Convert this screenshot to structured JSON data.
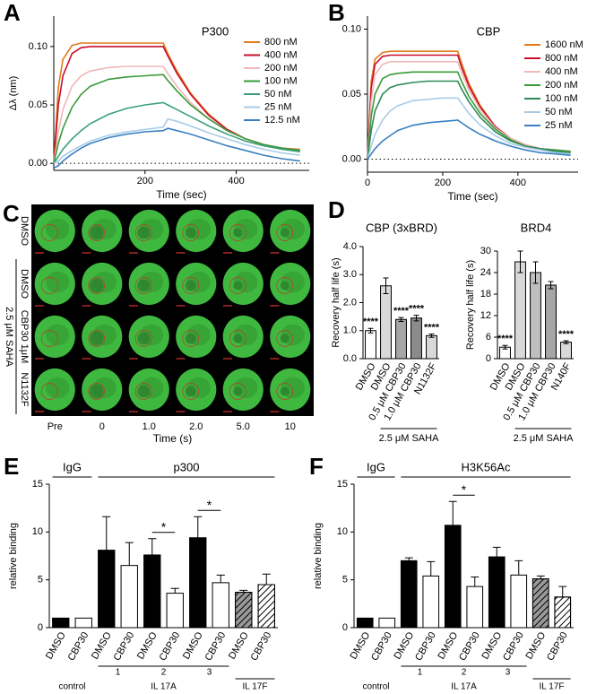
{
  "chart_data": [
    {
      "type": "line",
      "panel": "A",
      "title": "P300",
      "xlabel": "Time (sec)",
      "ylabel": "Δλ (nm)",
      "xlim": [
        0,
        560
      ],
      "xticks": [
        200,
        400
      ],
      "ylim": [
        -0.006,
        0.126
      ],
      "yticks": [
        {
          "value": 0,
          "label": "0.00"
        },
        {
          "value": 0.05,
          "label": "0.05"
        },
        {
          "value": 0.1,
          "label": "0.10"
        }
      ],
      "x": [
        0,
        10,
        20,
        40,
        60,
        80,
        120,
        160,
        200,
        240,
        250,
        270,
        300,
        340,
        380,
        420,
        460,
        500,
        540
      ],
      "series": [
        {
          "name": "800 nM",
          "color": "#e07b1a",
          "values": [
            0,
            0.065,
            0.089,
            0.101,
            0.103,
            0.103,
            0.103,
            0.103,
            0.103,
            0.103,
            0.094,
            0.079,
            0.06,
            0.042,
            0.029,
            0.021,
            0.016,
            0.013,
            0.012
          ]
        },
        {
          "name": "400 nM",
          "color": "#c8102e",
          "values": [
            0,
            0.05,
            0.075,
            0.094,
            0.099,
            0.1,
            0.1,
            0.1,
            0.1,
            0.1,
            0.092,
            0.077,
            0.059,
            0.041,
            0.029,
            0.021,
            0.016,
            0.013,
            0.011
          ]
        },
        {
          "name": "200 nM",
          "color": "#f0b8b8",
          "values": [
            0,
            0.027,
            0.046,
            0.066,
            0.075,
            0.079,
            0.082,
            0.083,
            0.083,
            0.083,
            0.077,
            0.066,
            0.052,
            0.038,
            0.028,
            0.021,
            0.016,
            0.013,
            0.011
          ]
        },
        {
          "name": "100 nM",
          "color": "#3a9a3a",
          "values": [
            0,
            0.017,
            0.03,
            0.048,
            0.059,
            0.066,
            0.072,
            0.074,
            0.075,
            0.076,
            0.071,
            0.062,
            0.05,
            0.038,
            0.028,
            0.021,
            0.016,
            0.013,
            0.011
          ]
        },
        {
          "name": "50 nM",
          "color": "#3aa07a",
          "values": [
            0,
            0.006,
            0.012,
            0.021,
            0.028,
            0.034,
            0.042,
            0.047,
            0.05,
            0.052,
            0.05,
            0.046,
            0.04,
            0.032,
            0.025,
            0.019,
            0.015,
            0.012,
            0.01
          ]
        },
        {
          "name": "25 nM",
          "color": "#a8cce8",
          "values": [
            0,
            0.002,
            0.006,
            0.011,
            0.015,
            0.019,
            0.024,
            0.027,
            0.029,
            0.031,
            0.038,
            0.036,
            0.032,
            0.026,
            0.021,
            0.016,
            0.012,
            0.009,
            0.007
          ]
        },
        {
          "name": "12.5 nM",
          "color": "#3a7fc0",
          "values": [
            -0.004,
            -0.002,
            0.002,
            0.008,
            0.013,
            0.017,
            0.022,
            0.025,
            0.027,
            0.028,
            0.03,
            0.028,
            0.025,
            0.02,
            0.015,
            0.011,
            0.007,
            0.004,
            0.002
          ]
        }
      ]
    },
    {
      "type": "line",
      "panel": "B",
      "title": "CBP",
      "xlabel": "Time (sec)",
      "xlim": [
        0,
        560
      ],
      "xticks": [
        0,
        200,
        400
      ],
      "ylim": [
        -0.01,
        0.11
      ],
      "yticks": [
        {
          "value": 0,
          "label": "0.00"
        },
        {
          "value": 0.05,
          "label": "0.05"
        },
        {
          "value": 0.1,
          "label": "0.10"
        }
      ],
      "x": [
        0,
        10,
        20,
        40,
        60,
        80,
        120,
        160,
        200,
        240,
        250,
        270,
        300,
        340,
        380,
        420,
        460,
        500,
        540
      ],
      "series": [
        {
          "name": "1600 nM",
          "color": "#e07b1a",
          "values": [
            0,
            0.06,
            0.077,
            0.082,
            0.083,
            0.083,
            0.083,
            0.083,
            0.083,
            0.083,
            0.074,
            0.058,
            0.041,
            0.025,
            0.016,
            0.011,
            0.008,
            0.007,
            0.006
          ]
        },
        {
          "name": "800 nM",
          "color": "#c8102e",
          "values": [
            0,
            0.055,
            0.073,
            0.079,
            0.08,
            0.08,
            0.08,
            0.08,
            0.08,
            0.08,
            0.071,
            0.056,
            0.04,
            0.025,
            0.016,
            0.011,
            0.008,
            0.007,
            0.006
          ]
        },
        {
          "name": "400 nM",
          "color": "#f0b8b8",
          "values": [
            0,
            0.045,
            0.065,
            0.073,
            0.075,
            0.075,
            0.075,
            0.075,
            0.075,
            0.075,
            0.067,
            0.053,
            0.038,
            0.024,
            0.016,
            0.011,
            0.008,
            0.007,
            0.006
          ]
        },
        {
          "name": "200 nM",
          "color": "#3a9a3a",
          "values": [
            0,
            0.033,
            0.05,
            0.062,
            0.065,
            0.066,
            0.067,
            0.067,
            0.067,
            0.067,
            0.06,
            0.048,
            0.035,
            0.023,
            0.015,
            0.01,
            0.008,
            0.007,
            0.006
          ]
        },
        {
          "name": "100 nM",
          "color": "#2e8b57",
          "values": [
            0,
            0.022,
            0.037,
            0.05,
            0.055,
            0.057,
            0.059,
            0.06,
            0.06,
            0.06,
            0.054,
            0.044,
            0.032,
            0.021,
            0.014,
            0.01,
            0.008,
            0.006,
            0.005
          ]
        },
        {
          "name": "50 nM",
          "color": "#a8cce8",
          "values": [
            0,
            0.01,
            0.019,
            0.03,
            0.037,
            0.041,
            0.045,
            0.046,
            0.047,
            0.047,
            0.043,
            0.035,
            0.026,
            0.018,
            0.012,
            0.009,
            0.007,
            0.005,
            0.004
          ]
        },
        {
          "name": "25 nM",
          "color": "#3a7fc0",
          "values": [
            0,
            0.004,
            0.008,
            0.014,
            0.018,
            0.022,
            0.026,
            0.028,
            0.029,
            0.03,
            0.028,
            0.024,
            0.019,
            0.014,
            0.01,
            0.007,
            0.005,
            0.004,
            0.003
          ]
        }
      ]
    },
    {
      "type": "bar",
      "panel": "D",
      "title": "CBP (3xBRD)",
      "ylabel": "Recovery half life (s)",
      "categories": [
        "DMSO",
        "DMSO",
        "0.5 μM CBP30",
        "1.0 μM CBP30",
        "N1132F"
      ],
      "values": [
        1.0,
        2.6,
        1.4,
        1.45,
        0.82
      ],
      "errors": [
        0.08,
        0.28,
        0.07,
        0.1,
        0.06
      ],
      "significance": [
        "****",
        null,
        "****",
        "****",
        "****"
      ],
      "colors": [
        "#ffffff",
        "#d9d9d9",
        "#a6a6a6",
        "#8c8c8c",
        "#d9d9d9"
      ],
      "bracket_label": "2.5 μM SAHA",
      "ylim": [
        0,
        4
      ],
      "yticks": [
        {
          "value": 0,
          "label": "0.0"
        },
        {
          "value": 1,
          "label": "1.0"
        },
        {
          "value": 2,
          "label": "2.0"
        },
        {
          "value": 3,
          "label": "3.0"
        },
        {
          "value": 4,
          "label": "4.0"
        }
      ]
    },
    {
      "type": "bar",
      "title": "BRD4",
      "ylabel": "Recovery half life (s)",
      "categories": [
        "DMSO",
        "DMSO",
        "0.5 μM CBP30",
        "1.0 μM CBP30",
        "N140F"
      ],
      "values": [
        3.2,
        27,
        24,
        20.5,
        4.6
      ],
      "errors": [
        0.5,
        3,
        3,
        1,
        0.4
      ],
      "significance": [
        "****",
        null,
        null,
        null,
        "****"
      ],
      "colors": [
        "#ffffff",
        "#d9d9d9",
        "#bfbfbf",
        "#a6a6a6",
        "#d9d9d9"
      ],
      "bracket_label": "2.5 μM SAHA",
      "ylim": [
        0,
        30
      ],
      "yticks": [
        0,
        6,
        12,
        18,
        24,
        30
      ]
    },
    {
      "type": "bar",
      "panel": "E",
      "ylabel": "relative binding",
      "headers": [
        "IgG",
        "p300"
      ],
      "replicates": [
        "1",
        "2",
        "3"
      ],
      "groups": [
        "control",
        "IL 17A",
        "IL 17F"
      ],
      "categories": [
        "DMSO",
        "CBP30",
        "DMSO",
        "CBP30",
        "DMSO",
        "CBP30",
        "DMSO",
        "CBP30",
        "DMSO",
        "CBP30"
      ],
      "values": [
        1,
        1,
        8.1,
        6.5,
        7.6,
        3.6,
        9.4,
        4.7,
        3.7,
        4.5
      ],
      "errors": [
        null,
        null,
        3.5,
        2.4,
        1.7,
        0.5,
        2.2,
        0.8,
        0.2,
        1.1
      ],
      "pair_significance": [
        null,
        null,
        "*",
        "*",
        null
      ],
      "colors": [
        "#000000",
        "#ffffff",
        "#000000",
        "#ffffff",
        "#000000",
        "#ffffff",
        "#000000",
        "#ffffff",
        "#999999",
        "#ffffff"
      ],
      "hatched": [
        false,
        false,
        false,
        false,
        false,
        false,
        false,
        false,
        true,
        true
      ],
      "ylim": [
        0,
        15
      ],
      "yticks": [
        0,
        5,
        10,
        15
      ]
    },
    {
      "type": "bar",
      "panel": "F",
      "ylabel": "relative binding",
      "headers": [
        "IgG",
        "H3K56Ac"
      ],
      "replicates": [
        "1",
        "2",
        "3"
      ],
      "groups": [
        "control",
        "IL 17A",
        "IL 17F"
      ],
      "categories": [
        "DMSO",
        "CBP30",
        "DMSO",
        "CBP30",
        "DMSO",
        "CBP30",
        "DMSO",
        "CBP30",
        "DMSO",
        "CBP30"
      ],
      "values": [
        1,
        1,
        7,
        5.4,
        10.7,
        4.3,
        7.4,
        5.5,
        5.1,
        3.2
      ],
      "errors": [
        null,
        null,
        0.3,
        1.5,
        2.5,
        1,
        1,
        1.5,
        0.3,
        1.1
      ],
      "pair_significance": [
        null,
        null,
        "*",
        null,
        null
      ],
      "colors": [
        "#000000",
        "#ffffff",
        "#000000",
        "#ffffff",
        "#000000",
        "#ffffff",
        "#000000",
        "#ffffff",
        "#999999",
        "#ffffff"
      ],
      "hatched": [
        false,
        false,
        false,
        false,
        false,
        false,
        false,
        false,
        true,
        true
      ],
      "ylim": [
        0,
        15
      ],
      "yticks": [
        0,
        5,
        10,
        15
      ]
    }
  ],
  "image_panel": {
    "panel": "C",
    "row_labels": [
      "DMSO",
      "DMSO",
      "CBP30 1μM",
      "N1132F"
    ],
    "treatment": "2.5 μM SAHA",
    "column_labels": [
      "Pre",
      "0",
      "1.0",
      "2.0",
      "5.0",
      "10"
    ],
    "xlabel": "Time (s)"
  }
}
